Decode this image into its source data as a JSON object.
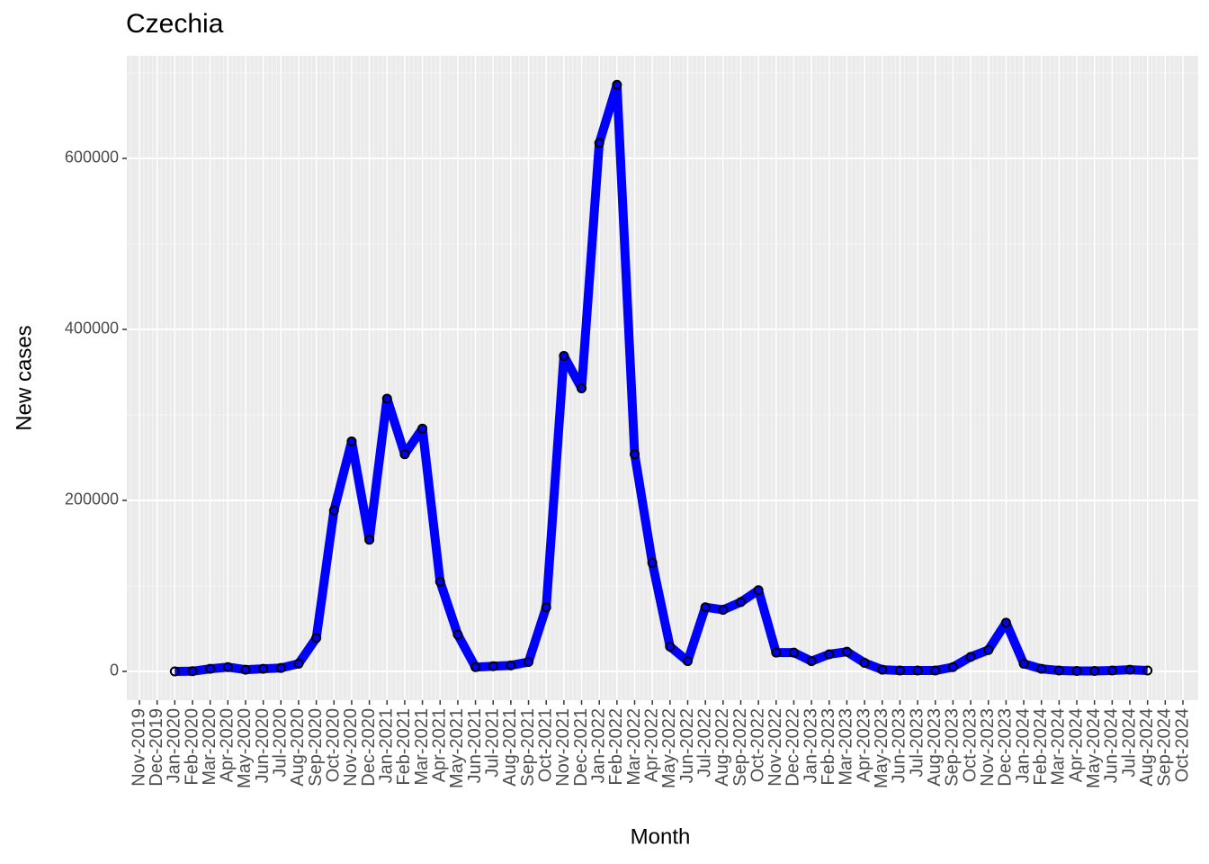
{
  "chart_data": {
    "type": "line",
    "title": "Czechia",
    "x_label": "Month",
    "y_label": "New cases",
    "categories": [
      "Nov-2019",
      "Dec-2019",
      "Jan-2020",
      "Feb-2020",
      "Mar-2020",
      "Apr-2020",
      "May-2020",
      "Jun-2020",
      "Jul-2020",
      "Aug-2020",
      "Sep-2020",
      "Oct-2020",
      "Nov-2020",
      "Dec-2020",
      "Jan-2021",
      "Feb-2021",
      "Mar-2021",
      "Apr-2021",
      "May-2021",
      "Jun-2021",
      "Jul-2021",
      "Aug-2021",
      "Sep-2021",
      "Oct-2021",
      "Nov-2021",
      "Dec-2021",
      "Jan-2022",
      "Feb-2022",
      "Mar-2022",
      "Apr-2022",
      "May-2022",
      "Jun-2022",
      "Jul-2022",
      "Aug-2022",
      "Sep-2022",
      "Oct-2022",
      "Nov-2022",
      "Dec-2022",
      "Jan-2023",
      "Feb-2023",
      "Mar-2023",
      "Apr-2023",
      "May-2023",
      "Jun-2023",
      "Jul-2023",
      "Aug-2023",
      "Sep-2023",
      "Oct-2023",
      "Nov-2023",
      "Dec-2023",
      "Jan-2024",
      "Feb-2024",
      "Mar-2024",
      "Apr-2024",
      "May-2024",
      "Jun-2024",
      "Jul-2024",
      "Aug-2024",
      "Sep-2024",
      "Oct-2024"
    ],
    "series": [
      {
        "color": "#0000ff",
        "marker_edge_color": "#000000",
        "values": [
          null,
          null,
          0,
          200,
          3000,
          5000,
          2000,
          3000,
          4000,
          9000,
          39000,
          188000,
          269000,
          154000,
          319000,
          254000,
          284000,
          105000,
          43000,
          5000,
          6000,
          7000,
          11000,
          75000,
          369000,
          331000,
          618000,
          686000,
          254000,
          127000,
          29000,
          12000,
          75000,
          72000,
          81000,
          95000,
          22000,
          22000,
          12000,
          20000,
          23000,
          10000,
          2000,
          1000,
          1000,
          1000,
          5000,
          17000,
          25000,
          57000,
          9000,
          3000,
          1000,
          500,
          500,
          1000,
          2000,
          1000,
          null,
          null
        ]
      }
    ],
    "ylim": [
      -33700,
      720000
    ],
    "yticks": [
      0,
      200000,
      400000,
      600000
    ],
    "y_minor_ticks": [
      100000,
      300000,
      500000,
      700000
    ],
    "grid": true
  }
}
